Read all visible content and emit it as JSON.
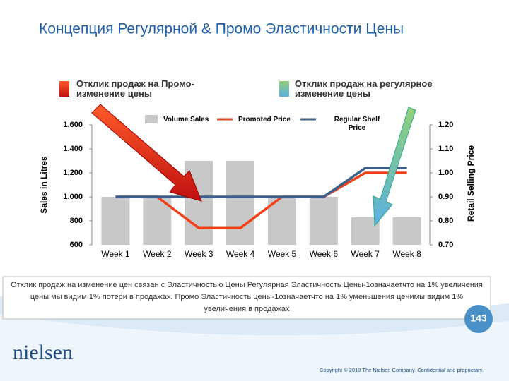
{
  "chart_data": {
    "type": "bar-line",
    "title": "Концепция Регулярной & Промо Эластичности Цены",
    "annotations": [
      "Отклик продаж на Промо-изменение цены",
      "Отклик продаж на регулярное изменение цены"
    ],
    "categories": [
      "Week 1",
      "Week 2",
      "Week 3",
      "Week 4",
      "Week 5",
      "Week 6",
      "Week 7",
      "Week 8"
    ],
    "series": [
      {
        "name": "Volume Sales",
        "color": "#c8c8c8",
        "values": [
          1000,
          1000,
          1300,
          1300,
          1000,
          1000,
          830,
          830
        ]
      },
      {
        "name": "Promoted Price",
        "color": "#f0401a",
        "axis": "y2",
        "values": [
          0.9,
          0.9,
          0.77,
          0.77,
          0.9,
          0.9,
          1.0,
          1.0
        ]
      },
      {
        "name": "Regular Shelf Price",
        "color": "#3a5f8a",
        "axis": "y2",
        "values": [
          0.9,
          0.9,
          0.9,
          0.9,
          0.9,
          0.9,
          1.02,
          1.02
        ]
      }
    ],
    "ylabel": "Sales in Litres",
    "y2label": "Retail Selling Price",
    "ylim": [
      600,
      1600
    ],
    "yticks": [
      600,
      800,
      {
        "value": 1000,
        "label": "1,000"
      },
      {
        "value": 1200,
        "label": "1,200"
      },
      {
        "value": 1400,
        "label": "1,400"
      },
      {
        "value": 1600,
        "label": "1,600"
      }
    ],
    "y2lim": [
      0.7,
      1.2
    ],
    "y2ticks": [
      {
        "value": 0.7,
        "label": "0.70"
      },
      {
        "value": 0.8,
        "label": "0.80"
      },
      {
        "value": 0.9,
        "label": "0.90"
      },
      {
        "value": 1.0,
        "label": "1.00"
      },
      {
        "value": 1.1,
        "label": "1.10"
      },
      {
        "value": 1.2,
        "label": "1.20"
      }
    ]
  },
  "slide": {
    "note": "Отклик продаж на изменение цен связан с Эластичностью Цены Регулярная Эластичность Цены-1означаетчто на 1% увеличения цены мы видим 1% потери в продажах. Промо Эластичность цены-1означаетчто на 1% уменьшения ценимы видим 1% увеличения в продажах",
    "page_number": "143",
    "logo": "nielsen",
    "copyright": "Copyright © 2010 The Nielsen Company. Confidential and proprietary."
  }
}
